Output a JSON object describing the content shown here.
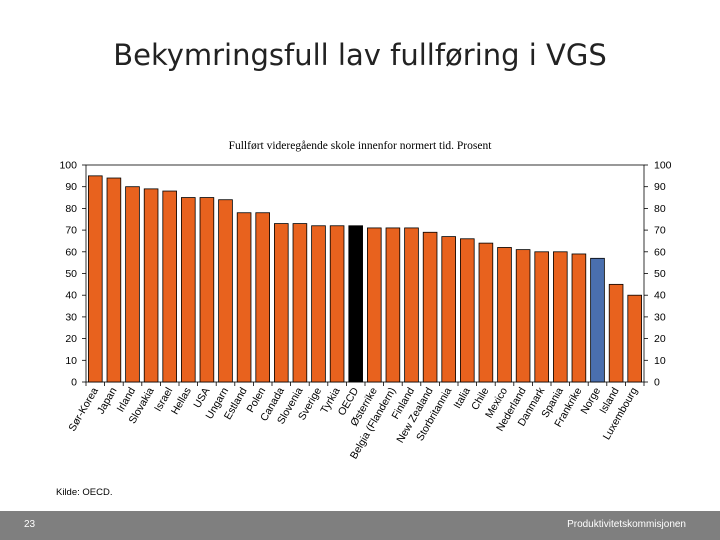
{
  "slide": {
    "title": "Bekymringsfull lav fullføring i VGS",
    "source": "Kilde: OECD.",
    "page_number": "23",
    "brand": "Produktivitetskommisjonen"
  },
  "colors": {
    "default": "#e8621e",
    "highlight_norway": "#4a6fae",
    "highlight_oecd": "#000000"
  },
  "chart_data": {
    "type": "bar",
    "title": "Fullført videregående skole innenfor normert tid. Prosent",
    "xlabel": "",
    "ylabel": "",
    "ylim": [
      0,
      100
    ],
    "yticks": [
      0,
      10,
      20,
      30,
      40,
      50,
      60,
      70,
      80,
      90,
      100
    ],
    "grid": false,
    "categories": [
      "Sør-Korea",
      "Japan",
      "Irland",
      "Slovakia",
      "Israel",
      "Hellas",
      "USA",
      "Ungarn",
      "Estland",
      "Polen",
      "Canada",
      "Slovenia",
      "Sverige",
      "Tyrkia",
      "OECD",
      "Østerrike",
      "Belgia (Flandern)",
      "Finland",
      "New Zealand",
      "Storbritannia",
      "Italia",
      "Chile",
      "Mexico",
      "Nederland",
      "Danmark",
      "Spania",
      "Frankrike",
      "Norge",
      "Island",
      "Luxembourg"
    ],
    "values": [
      95,
      94,
      90,
      89,
      88,
      85,
      85,
      84,
      78,
      78,
      73,
      73,
      72,
      72,
      72,
      71,
      71,
      71,
      69,
      67,
      66,
      64,
      62,
      61,
      60,
      60,
      59,
      57,
      45,
      40
    ],
    "highlight": {
      "OECD": "highlight_oecd",
      "Norge": "highlight_norway"
    }
  }
}
